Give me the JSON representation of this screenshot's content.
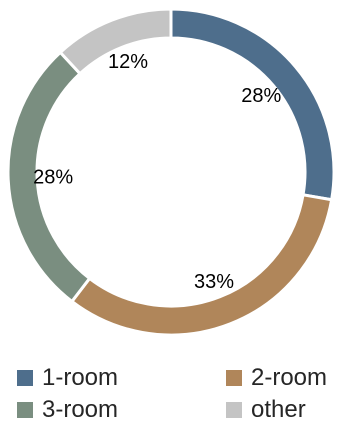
{
  "chart_data": {
    "type": "pie",
    "variant": "donut",
    "title": "",
    "categories": [
      "1-room",
      "2-room",
      "3-room",
      "other"
    ],
    "values": [
      28,
      33,
      28,
      12
    ],
    "labels": [
      "28%",
      "33%",
      "28%",
      "12%"
    ],
    "colors": [
      "#4e6e8c",
      "#b0865a",
      "#7a8e80",
      "#c4c4c4"
    ],
    "legend_position": "bottom",
    "start": "top, clockwise"
  }
}
